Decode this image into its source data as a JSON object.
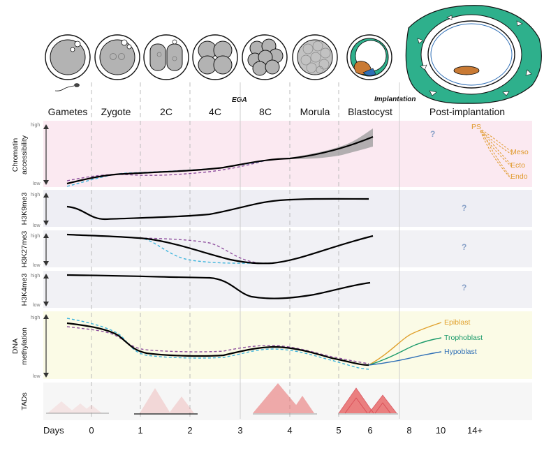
{
  "stages": [
    "Gametes",
    "Zygote",
    "2C",
    "4C",
    "8C",
    "Morula",
    "Blastocyst",
    "Post-implantation"
  ],
  "events": {
    "ega": "EGA",
    "implantation": "Implantation"
  },
  "tracks": [
    {
      "label_lines": [
        "Chromatin",
        "accessibility"
      ],
      "high": "high",
      "low": "low"
    },
    {
      "label_lines": [
        "H3K9me3"
      ],
      "high": "high",
      "low": "low"
    },
    {
      "label_lines": [
        "H3K27me3"
      ],
      "high": "high",
      "low": "low"
    },
    {
      "label_lines": [
        "H3K4me3"
      ],
      "high": "high",
      "low": "low"
    },
    {
      "label_lines": [
        "DNA",
        "methylation"
      ],
      "high": "high",
      "low": "low"
    },
    {
      "label_lines": [
        "TADs"
      ]
    }
  ],
  "unknown_mark": "?",
  "chromatin_lineages": {
    "root": "PS",
    "branches": [
      "Meso",
      "Ecto",
      "Endo"
    ]
  },
  "methylation_lineages": [
    "Epiblast",
    "Trophoblast",
    "Hypoblast"
  ],
  "days": {
    "title": "Days",
    "ticks": [
      "0",
      "1",
      "2",
      "3",
      "4",
      "5",
      "6",
      "8",
      "10",
      "14+"
    ]
  },
  "colors": {
    "chromatin_bg": "#fbe9f1",
    "k9_bg": "#eeeef4",
    "k27_bg": "#f1f1f5",
    "k4_bg": "#f1f1f5",
    "meth_bg": "#fbfbe6",
    "tad_bg": "#f6f6f6",
    "maternal": "#8e4e9e",
    "paternal": "#3cb4dc",
    "combined": "#000000",
    "ps": "#e09a2c",
    "epiblast": "#e0a02c",
    "trophoblast": "#1a9a6a",
    "hypoblast": "#2f6fb6",
    "question": "#8aa2c8",
    "tad": "#e86b6b",
    "trophectoderm": "#2eb08c"
  }
}
